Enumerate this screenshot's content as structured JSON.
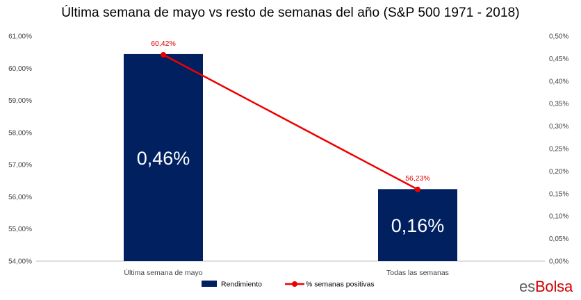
{
  "chart_data": {
    "type": "bar",
    "title": "Última semana de mayo vs resto de semanas del año (S&P 500 1971 - 2018)",
    "categories": [
      "Última semana de mayo",
      "Todas las semanas"
    ],
    "series": [
      {
        "name": "Rendimiento",
        "type": "bar",
        "axis": "right",
        "values": [
          0.46,
          0.16
        ],
        "value_labels": [
          "0,46%",
          "0,16%"
        ],
        "color": "#002060"
      },
      {
        "name": "% semanas positivas",
        "type": "line",
        "axis": "left",
        "values": [
          60.42,
          56.23
        ],
        "value_labels": [
          "60,42%",
          "56,23%"
        ],
        "color": "#ee0000"
      }
    ],
    "y_left": {
      "lim": [
        54,
        61
      ],
      "ticks": [
        54,
        55,
        56,
        57,
        58,
        59,
        60,
        61
      ],
      "tick_labels": [
        "54,00%",
        "55,00%",
        "56,00%",
        "57,00%",
        "58,00%",
        "59,00%",
        "60,00%",
        "61,00%"
      ]
    },
    "y_right": {
      "lim": [
        0,
        0.5
      ],
      "ticks": [
        0,
        0.05,
        0.1,
        0.15,
        0.2,
        0.25,
        0.3,
        0.35,
        0.4,
        0.45,
        0.5
      ],
      "tick_labels": [
        "0,00%",
        "0,05%",
        "0,10%",
        "0,15%",
        "0,20%",
        "0,25%",
        "0,30%",
        "0,35%",
        "0,40%",
        "0,45%",
        "0,50%"
      ]
    },
    "grid": false,
    "legend_position": "bottom"
  },
  "brand": {
    "part1": "es",
    "part2": "Bolsa"
  }
}
